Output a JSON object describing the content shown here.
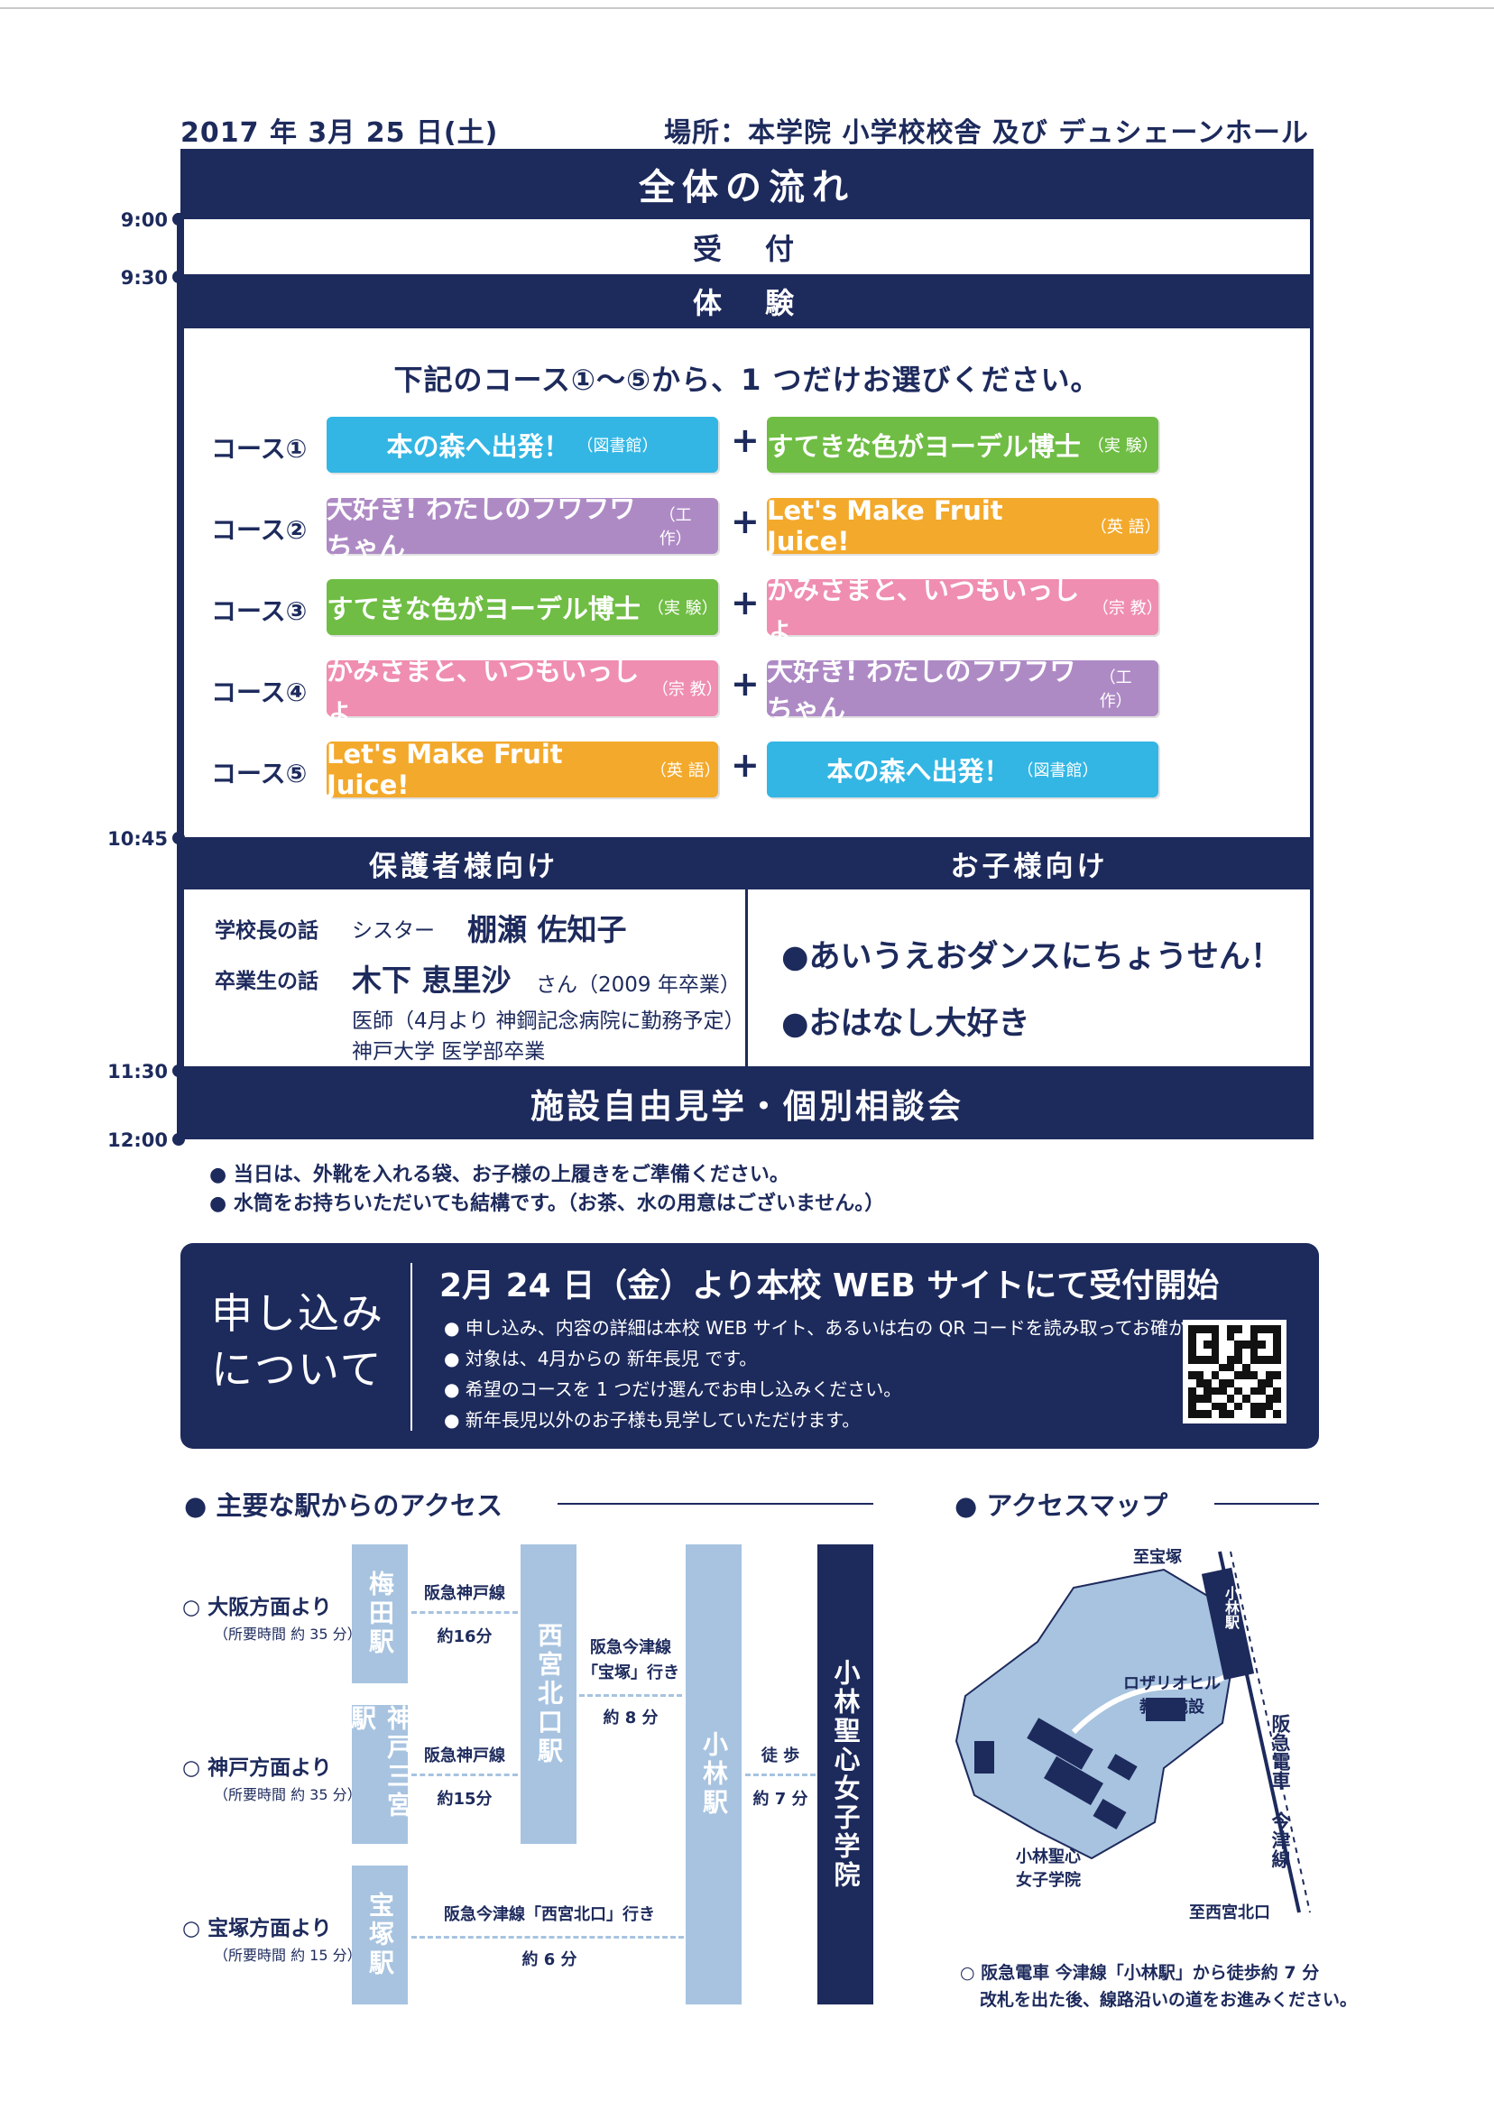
{
  "header": {
    "date": "2017 年 3月 25 日(土)",
    "location": "場所：本学院 小学校校舎 及び デュシェーンホール"
  },
  "timeline": [
    "9:00",
    "9:30",
    "10:45",
    "11:30",
    "12:00"
  ],
  "schedule": {
    "title": "全体の流れ",
    "reception": "受　付",
    "experience": "体　験",
    "instruction": "下記のコース①～⑤から、1 つだけお選びください。",
    "courses": [
      {
        "label": "コース①",
        "left": {
          "text": "本の森へ出発！",
          "tag": "（図書館）"
        },
        "right": {
          "text": "すてきな色がヨーデル博士",
          "tag": "（実 験）"
        }
      },
      {
        "label": "コース②",
        "left": {
          "text": "大好き! わたしのフワフワちゃん",
          "tag": "（工 作）"
        },
        "right": {
          "text": "Let's Make Fruit Juice!",
          "tag": "（英 語）"
        }
      },
      {
        "label": "コース③",
        "left": {
          "text": "すてきな色がヨーデル博士",
          "tag": "（実 験）"
        },
        "right": {
          "text": "かみさまと、いつもいっしょ",
          "tag": "（宗 教）"
        }
      },
      {
        "label": "コース④",
        "left": {
          "text": "かみさまと、いつもいっしょ",
          "tag": "（宗 教）"
        },
        "right": {
          "text": "大好き! わたしのフワフワちゃん",
          "tag": "（工 作）"
        }
      },
      {
        "label": "コース⑤",
        "left": {
          "text": "Let's Make Fruit Juice!",
          "tag": "（英 語）"
        },
        "right": {
          "text": "本の森へ出発！",
          "tag": "（図書館）"
        }
      }
    ],
    "plus": "+",
    "parents_header": "保護者様向け",
    "children_header": "お子様向け",
    "parents": {
      "principal_label": "学校長の話",
      "principal_title": "シスター",
      "principal_name": "棚瀬 佐知子",
      "alumni_label": "卒業生の話",
      "alumni_name": "木下 恵里沙",
      "alumni_suffix": "さん（2009 年卒業）",
      "alumni_line1": "医師（4月より 神鋼記念病院に勤務予定）",
      "alumni_line2": "神戸大学 医学部卒業"
    },
    "children": [
      "●あいうえおダンスにちょうせん！",
      "●おはなし大好き"
    ],
    "tour": "施設自由見学・個別相談会",
    "notes": [
      "● 当日は、外靴を入れる袋、お子様の上履きをご準備ください。",
      "● 水筒をお持ちいただいても結構です。（お茶、水の用意はございません。）"
    ]
  },
  "application": {
    "title_line1": "申し込み",
    "title_line2": "について",
    "headline": "2月 24 日（金）より本校 WEB サイトにて受付開始",
    "items": [
      "● 申し込み、内容の詳細は本校 WEB サイト、あるいは右の QR コードを読み取ってお確かめください。",
      "● 対象は、4月からの 新年長児 です。",
      "● 希望のコースを 1 つだけ選んでお申し込みください。",
      "● 新年長児以外のお子様も見学していただけます。"
    ]
  },
  "access": {
    "title": "● 主要な駅からのアクセス",
    "routes": [
      {
        "from": "○ 大阪方面より",
        "time": "（所要時間 約 35 分）"
      },
      {
        "from": "○ 神戸方面より",
        "time": "（所要時間 約 35 分）"
      },
      {
        "from": "○ 宝塚方面より",
        "time": "（所要時間 約 15 分）"
      }
    ],
    "stations": {
      "umeda": "梅田駅",
      "sannomiya": "神戸三宮駅",
      "takarazuka": "宝塚駅",
      "nishinomiya": "西宮北口駅",
      "obayashi": "小林駅",
      "school": "小林聖心女子学院"
    },
    "lines": {
      "kobe1": "阪急神戸線",
      "kobe1_time": "約16分",
      "kobe2": "阪急神戸線",
      "kobe2_time": "約15分",
      "imazu1": "阪急今津線",
      "imazu1_dest": "「宝塚」行き",
      "imazu1_time": "約 8 分",
      "imazu2": "阪急今津線「西宮北口」行き",
      "imazu2_time": "約 6 分",
      "walk": "徒 歩",
      "walk_time": "約 7 分"
    }
  },
  "map": {
    "title": "● アクセスマップ",
    "to_takarazuka": "至宝塚",
    "station": "小林駅",
    "rosario_line1": "ロザリオヒル",
    "rosario_line2": "教育施設",
    "railway": "阪急電車 今津線",
    "school_line1": "小林聖心",
    "school_line2": "女子学院",
    "to_nishinomiya": "至西宮北口",
    "note_line1": "○ 阪急電車 今津線「小林駅」から徒歩約 7 分",
    "note_line2": "改札を出た後、線路沿いの道をお進みください。"
  }
}
